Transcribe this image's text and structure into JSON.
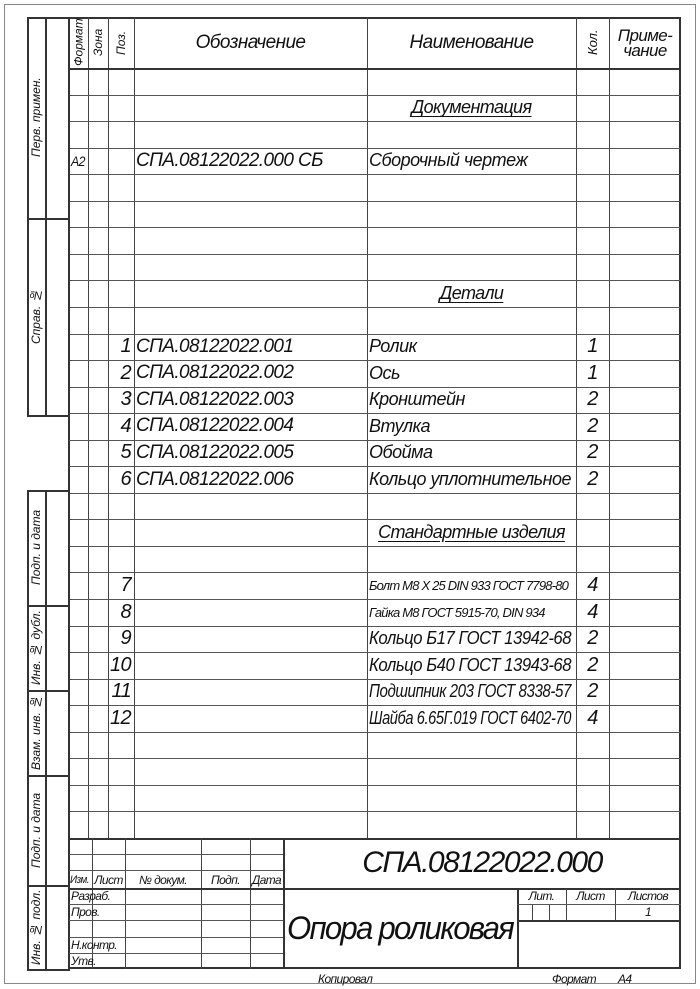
{
  "header": {
    "format": "Формат",
    "zone": "Зона",
    "pos": "Поз.",
    "designation": "Обозначение",
    "name": "Наименование",
    "qty": "Кол.",
    "note": "Приме-\nчание"
  },
  "rows": [
    {},
    {
      "name": "Документация",
      "section": true
    },
    {},
    {
      "format": "A2",
      "designation": "СПА.08122022.000 СБ",
      "name": "Сборочный чертеж"
    },
    {},
    {},
    {},
    {},
    {
      "name": "Детали",
      "section": true
    },
    {},
    {
      "pos": "1",
      "designation": "СПА.08122022.001",
      "name": "Ролик",
      "qty": "1"
    },
    {
      "pos": "2",
      "designation": "СПА.08122022.002",
      "name": "Ось",
      "qty": "1"
    },
    {
      "pos": "3",
      "designation": "СПА.08122022.003",
      "name": "Кронштейн",
      "qty": "2"
    },
    {
      "pos": "4",
      "designation": "СПА.08122022.004",
      "name": "Втулка",
      "qty": "2"
    },
    {
      "pos": "5",
      "designation": "СПА.08122022.005",
      "name": "Обойма",
      "qty": "2"
    },
    {
      "pos": "6",
      "designation": "СПА.08122022.006",
      "name": "Кольцо уплотнительное",
      "qty": "2"
    },
    {},
    {
      "name": "Стандартные изделия",
      "section": true
    },
    {},
    {
      "pos": "7",
      "name": "Болт М8 Х 25 DIN 933 ГОСТ 7798-80",
      "qty": "4",
      "small": true
    },
    {
      "pos": "8",
      "name": "Гайка М8 ГОСТ 5915-70, DIN 934",
      "qty": "4",
      "small": true
    },
    {
      "pos": "9",
      "name": "Кольцо Б17 ГОСТ 13942-68",
      "qty": "2"
    },
    {
      "pos": "10",
      "name": "Кольцо Б40 ГОСТ 13943-68",
      "qty": "2"
    },
    {
      "pos": "11",
      "name": "Подшипник 203 ГОСТ 8338-57",
      "qty": "2"
    },
    {
      "pos": "12",
      "name": "Шайба 6.65Г.019 ГОСТ 6402-70",
      "qty": "4"
    },
    {},
    {},
    {},
    {}
  ],
  "left_strip": {
    "perv_primen": "Перв. примен.",
    "sprav_no": "Справ. №",
    "podp_data_1": "Подп. и дата",
    "inv_dubl": "Инв. № дубл.",
    "vzam_inv": "Взам. инв. №",
    "podp_data_2": "Подп. и дата",
    "inv_podl": "Инв. № подл."
  },
  "title_block": {
    "document_code": "СПА.08122022.000",
    "title": "Опора роликовая",
    "izm": "Изм.",
    "list": "Лист",
    "doc_no": "№ докум.",
    "podp": "Подп.",
    "data": "Дата",
    "razrab": "Разраб.",
    "prov": "Пров.",
    "n_kontr": "Н.контр.",
    "utv": "Утв.",
    "lit_label": "Лит.",
    "sheet_label": "Лист",
    "sheets_label": "Листов",
    "sheets_value": "1"
  },
  "footer": {
    "copied": "Копировал",
    "format_label": "Формат",
    "format_value": "A4"
  }
}
